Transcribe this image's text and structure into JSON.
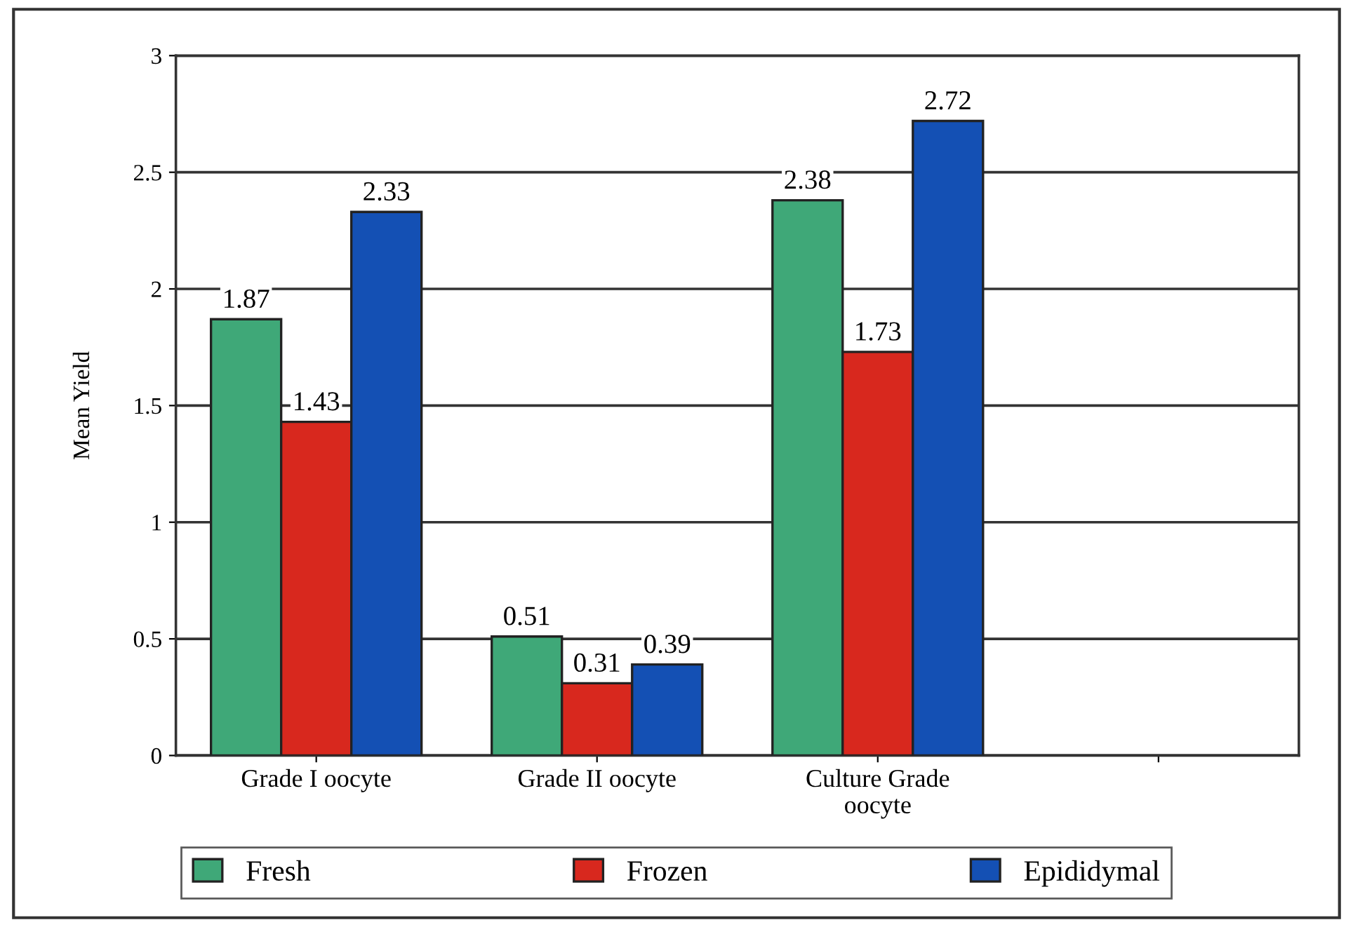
{
  "chart_data": {
    "type": "bar",
    "ylabel": "Mean Yield",
    "categories": [
      "Grade I oocyte",
      "Grade II oocyte",
      "Culture Grade\noocyte",
      null
    ],
    "series": [
      {
        "name": "Fresh",
        "color": "#3fa878",
        "values": [
          1.87,
          0.51,
          2.38,
          null
        ]
      },
      {
        "name": "Frozen",
        "color": "#d8281e",
        "values": [
          1.43,
          0.31,
          1.73,
          null
        ]
      },
      {
        "name": "Epididymal",
        "color": "#1450b4",
        "values": [
          2.33,
          0.39,
          2.72,
          null
        ]
      }
    ],
    "ylim": [
      0,
      3
    ],
    "yticks": [
      0,
      0.5,
      1,
      1.5,
      2,
      2.5,
      3
    ],
    "grid": "y",
    "legend": "bottom",
    "data_labels": true
  }
}
